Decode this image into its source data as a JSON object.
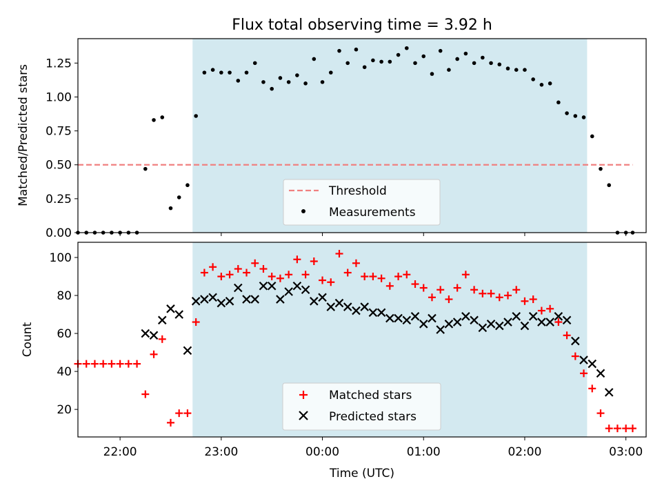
{
  "chart_data": [
    {
      "type": "scatter",
      "title": "Flux total observing time = 3.92 h",
      "xlabel": "",
      "ylabel": "Matched/Predicted stars",
      "ylim": [
        0,
        1.43
      ],
      "yticks": [
        0.0,
        0.25,
        0.5,
        0.75,
        1.0,
        1.25
      ],
      "ytick_labels": [
        "0.00",
        "0.25",
        "0.50",
        "0.75",
        "1.00",
        "1.25"
      ],
      "xlim": [
        "21:35",
        "03:12"
      ],
      "x_unit": "time (UTC)",
      "shaded_region": {
        "start": "22:43",
        "end": "02:37",
        "color": "#d3e9f0"
      },
      "threshold": {
        "value": 0.5,
        "start": "21:35",
        "end": "03:04",
        "color": "#f08080",
        "style": "dashed"
      },
      "legend": {
        "position": "lower center",
        "entries": [
          "Threshold",
          "Measurements"
        ]
      },
      "series": [
        {
          "name": "Measurements",
          "marker": "dot",
          "color": "#000000",
          "x": [
            "21:35",
            "21:40",
            "21:45",
            "21:50",
            "21:55",
            "22:00",
            "22:05",
            "22:10",
            "22:15",
            "22:20",
            "22:25",
            "22:30",
            "22:35",
            "22:40",
            "22:45",
            "22:50",
            "22:55",
            "23:00",
            "23:05",
            "23:10",
            "23:15",
            "23:20",
            "23:25",
            "23:30",
            "23:35",
            "23:40",
            "23:45",
            "23:50",
            "23:55",
            "00:00",
            "00:05",
            "00:10",
            "00:15",
            "00:20",
            "00:25",
            "00:30",
            "00:35",
            "00:40",
            "00:45",
            "00:50",
            "00:55",
            "01:00",
            "01:05",
            "01:10",
            "01:15",
            "01:20",
            "01:25",
            "01:30",
            "01:35",
            "01:40",
            "01:45",
            "01:50",
            "01:55",
            "02:00",
            "02:05",
            "02:10",
            "02:15",
            "02:20",
            "02:25",
            "02:30",
            "02:35",
            "02:40",
            "02:45",
            "02:50",
            "02:55",
            "03:00",
            "03:04"
          ],
          "y": [
            0,
            0,
            0,
            0,
            0,
            0,
            0,
            0,
            0.47,
            0.83,
            0.85,
            0.18,
            0.26,
            0.35,
            0.86,
            1.18,
            1.2,
            1.18,
            1.18,
            1.12,
            1.18,
            1.25,
            1.11,
            1.06,
            1.14,
            1.11,
            1.16,
            1.1,
            1.28,
            1.11,
            1.18,
            1.34,
            1.25,
            1.35,
            1.22,
            1.27,
            1.26,
            1.26,
            1.31,
            1.36,
            1.25,
            1.3,
            1.17,
            1.34,
            1.2,
            1.28,
            1.32,
            1.25,
            1.29,
            1.25,
            1.24,
            1.21,
            1.2,
            1.2,
            1.13,
            1.09,
            1.1,
            0.96,
            0.88,
            0.86,
            0.85,
            0.71,
            0.47,
            0.35,
            0,
            0,
            0
          ]
        }
      ]
    },
    {
      "type": "scatter",
      "title": "",
      "xlabel": "Time (UTC)",
      "ylabel": "Count",
      "ylim": [
        5.5,
        108
      ],
      "yticks": [
        20,
        40,
        60,
        80,
        100
      ],
      "ytick_labels": [
        "20",
        "40",
        "60",
        "80",
        "100"
      ],
      "xlim": [
        "21:35",
        "03:12"
      ],
      "xticks": [
        "22:00",
        "23:00",
        "00:00",
        "01:00",
        "02:00",
        "03:00"
      ],
      "xtick_labels": [
        "22:00",
        "23:00",
        "00:00",
        "01:00",
        "02:00",
        "03:00"
      ],
      "shaded_region": {
        "start": "22:43",
        "end": "02:37",
        "color": "#d3e9f0"
      },
      "legend": {
        "position": "lower center",
        "entries": [
          "Matched stars",
          "Predicted stars"
        ]
      },
      "series": [
        {
          "name": "Matched stars",
          "marker": "plus",
          "color": "#ff0000",
          "x": [
            "21:35",
            "21:40",
            "21:45",
            "21:50",
            "21:55",
            "22:00",
            "22:05",
            "22:10",
            "22:15",
            "22:20",
            "22:25",
            "22:30",
            "22:35",
            "22:40",
            "22:45",
            "22:50",
            "22:55",
            "23:00",
            "23:05",
            "23:10",
            "23:15",
            "23:20",
            "23:25",
            "23:30",
            "23:35",
            "23:40",
            "23:45",
            "23:50",
            "23:55",
            "00:00",
            "00:05",
            "00:10",
            "00:15",
            "00:20",
            "00:25",
            "00:30",
            "00:35",
            "00:40",
            "00:45",
            "00:50",
            "00:55",
            "01:00",
            "01:05",
            "01:10",
            "01:15",
            "01:20",
            "01:25",
            "01:30",
            "01:35",
            "01:40",
            "01:45",
            "01:50",
            "01:55",
            "02:00",
            "02:05",
            "02:10",
            "02:15",
            "02:20",
            "02:25",
            "02:30",
            "02:35",
            "02:40",
            "02:45",
            "02:50",
            "02:55",
            "03:00",
            "03:04"
          ],
          "y": [
            44,
            44,
            44,
            44,
            44,
            44,
            44,
            44,
            28,
            49,
            57,
            13,
            18,
            18,
            66,
            92,
            95,
            90,
            91,
            94,
            92,
            97,
            94,
            90,
            89,
            91,
            99,
            91,
            98,
            88,
            87,
            102,
            92,
            97,
            90,
            90,
            89,
            85,
            90,
            91,
            86,
            84,
            79,
            83,
            78,
            84,
            91,
            83,
            81,
            81,
            79,
            80,
            83,
            77,
            78,
            72,
            73,
            66,
            59,
            48,
            39,
            31,
            18,
            10,
            10,
            10,
            10
          ]
        },
        {
          "name": "Predicted stars",
          "marker": "x",
          "color": "#000000",
          "x": [
            "22:15",
            "22:20",
            "22:25",
            "22:30",
            "22:35",
            "22:40",
            "22:45",
            "22:50",
            "22:55",
            "23:00",
            "23:05",
            "23:10",
            "23:15",
            "23:20",
            "23:25",
            "23:30",
            "23:35",
            "23:40",
            "23:45",
            "23:50",
            "23:55",
            "00:00",
            "00:05",
            "00:10",
            "00:15",
            "00:20",
            "00:25",
            "00:30",
            "00:35",
            "00:40",
            "00:45",
            "00:50",
            "00:55",
            "01:00",
            "01:05",
            "01:10",
            "01:15",
            "01:20",
            "01:25",
            "01:30",
            "01:35",
            "01:40",
            "01:45",
            "01:50",
            "01:55",
            "02:00",
            "02:05",
            "02:10",
            "02:15",
            "02:20",
            "02:25",
            "02:30",
            "02:35",
            "02:40",
            "02:45",
            "02:50"
          ],
          "y": [
            60,
            59,
            67,
            73,
            70,
            51,
            77,
            78,
            79,
            76,
            77,
            84,
            78,
            78,
            85,
            85,
            78,
            82,
            85,
            83,
            77,
            79,
            74,
            76,
            74,
            72,
            74,
            71,
            71,
            68,
            68,
            67,
            69,
            65,
            68,
            62,
            65,
            66,
            69,
            67,
            63,
            65,
            64,
            66,
            69,
            64,
            69,
            66,
            66,
            69,
            67,
            56,
            46,
            44,
            39,
            29
          ]
        }
      ]
    }
  ]
}
